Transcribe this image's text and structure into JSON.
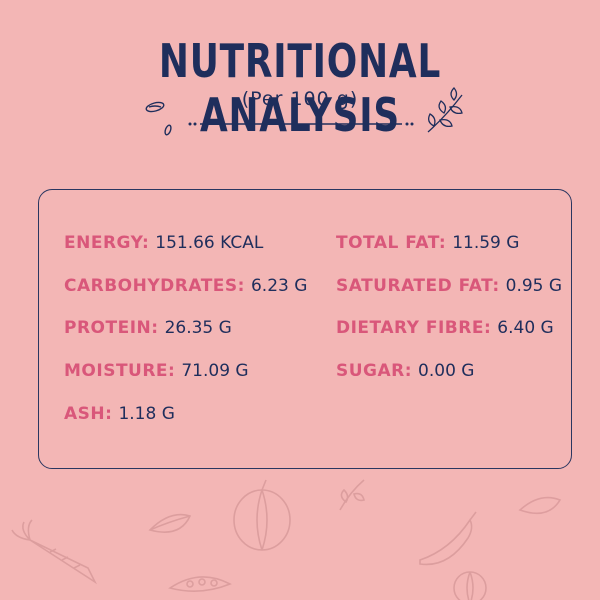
{
  "header": {
    "title": "NUTRITIONAL ANALYSIS",
    "subtitle": "(Per 100 g)"
  },
  "nutrients": {
    "energy": {
      "label": "ENERGY:",
      "value": "151.66 KCAL"
    },
    "carbohydrates": {
      "label": "CARBOHYDRATES:",
      "value": "6.23 G"
    },
    "protein": {
      "label": "PROTEIN:",
      "value": "26.35 G"
    },
    "moisture": {
      "label": "MOISTURE:",
      "value": "71.09 G"
    },
    "ash": {
      "label": "ASH:",
      "value": "1.18 G"
    },
    "total_fat": {
      "label": "TOTAL FAT:",
      "value": "11.59 G"
    },
    "saturated_fat": {
      "label": "SATURATED FAT:",
      "value": "0.95 G"
    },
    "dietary_fibre": {
      "label": "DIETARY FIBRE:",
      "value": "6.40 G"
    },
    "sugar": {
      "label": "SUGAR:",
      "value": "0.00 G"
    }
  },
  "colors": {
    "background": "#f3b6b5",
    "title": "#1f2e5c",
    "label": "#d9577a",
    "value": "#1f2e5c",
    "border": "#2a3660"
  }
}
